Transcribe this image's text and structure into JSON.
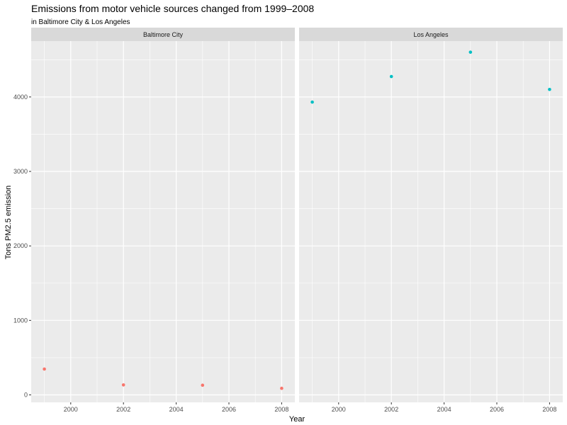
{
  "chart_data": {
    "type": "scatter",
    "title": "Emissions from motor vehicle sources changed from 1999–2008",
    "subtitle": "in Baltimore City & Los Angeles",
    "xlabel": "Year",
    "ylabel": "Tons PM2.5 emission",
    "xlim": [
      1998.5,
      2008.5
    ],
    "ylim": [
      -100,
      4750
    ],
    "x_ticks": [
      2000,
      2002,
      2004,
      2006,
      2008
    ],
    "y_ticks": [
      0,
      1000,
      2000,
      3000,
      4000
    ],
    "grid": true,
    "legend": "none",
    "facets": [
      {
        "name": "Baltimore City",
        "color": "#F8766D",
        "x": [
          1999,
          2002,
          2005,
          2008
        ],
        "y": [
          347,
          134,
          130,
          88
        ]
      },
      {
        "name": "Los Angeles",
        "color": "#00BFC4",
        "x": [
          1999,
          2002,
          2005,
          2008
        ],
        "y": [
          3931,
          4274,
          4601,
          4101
        ]
      }
    ]
  }
}
